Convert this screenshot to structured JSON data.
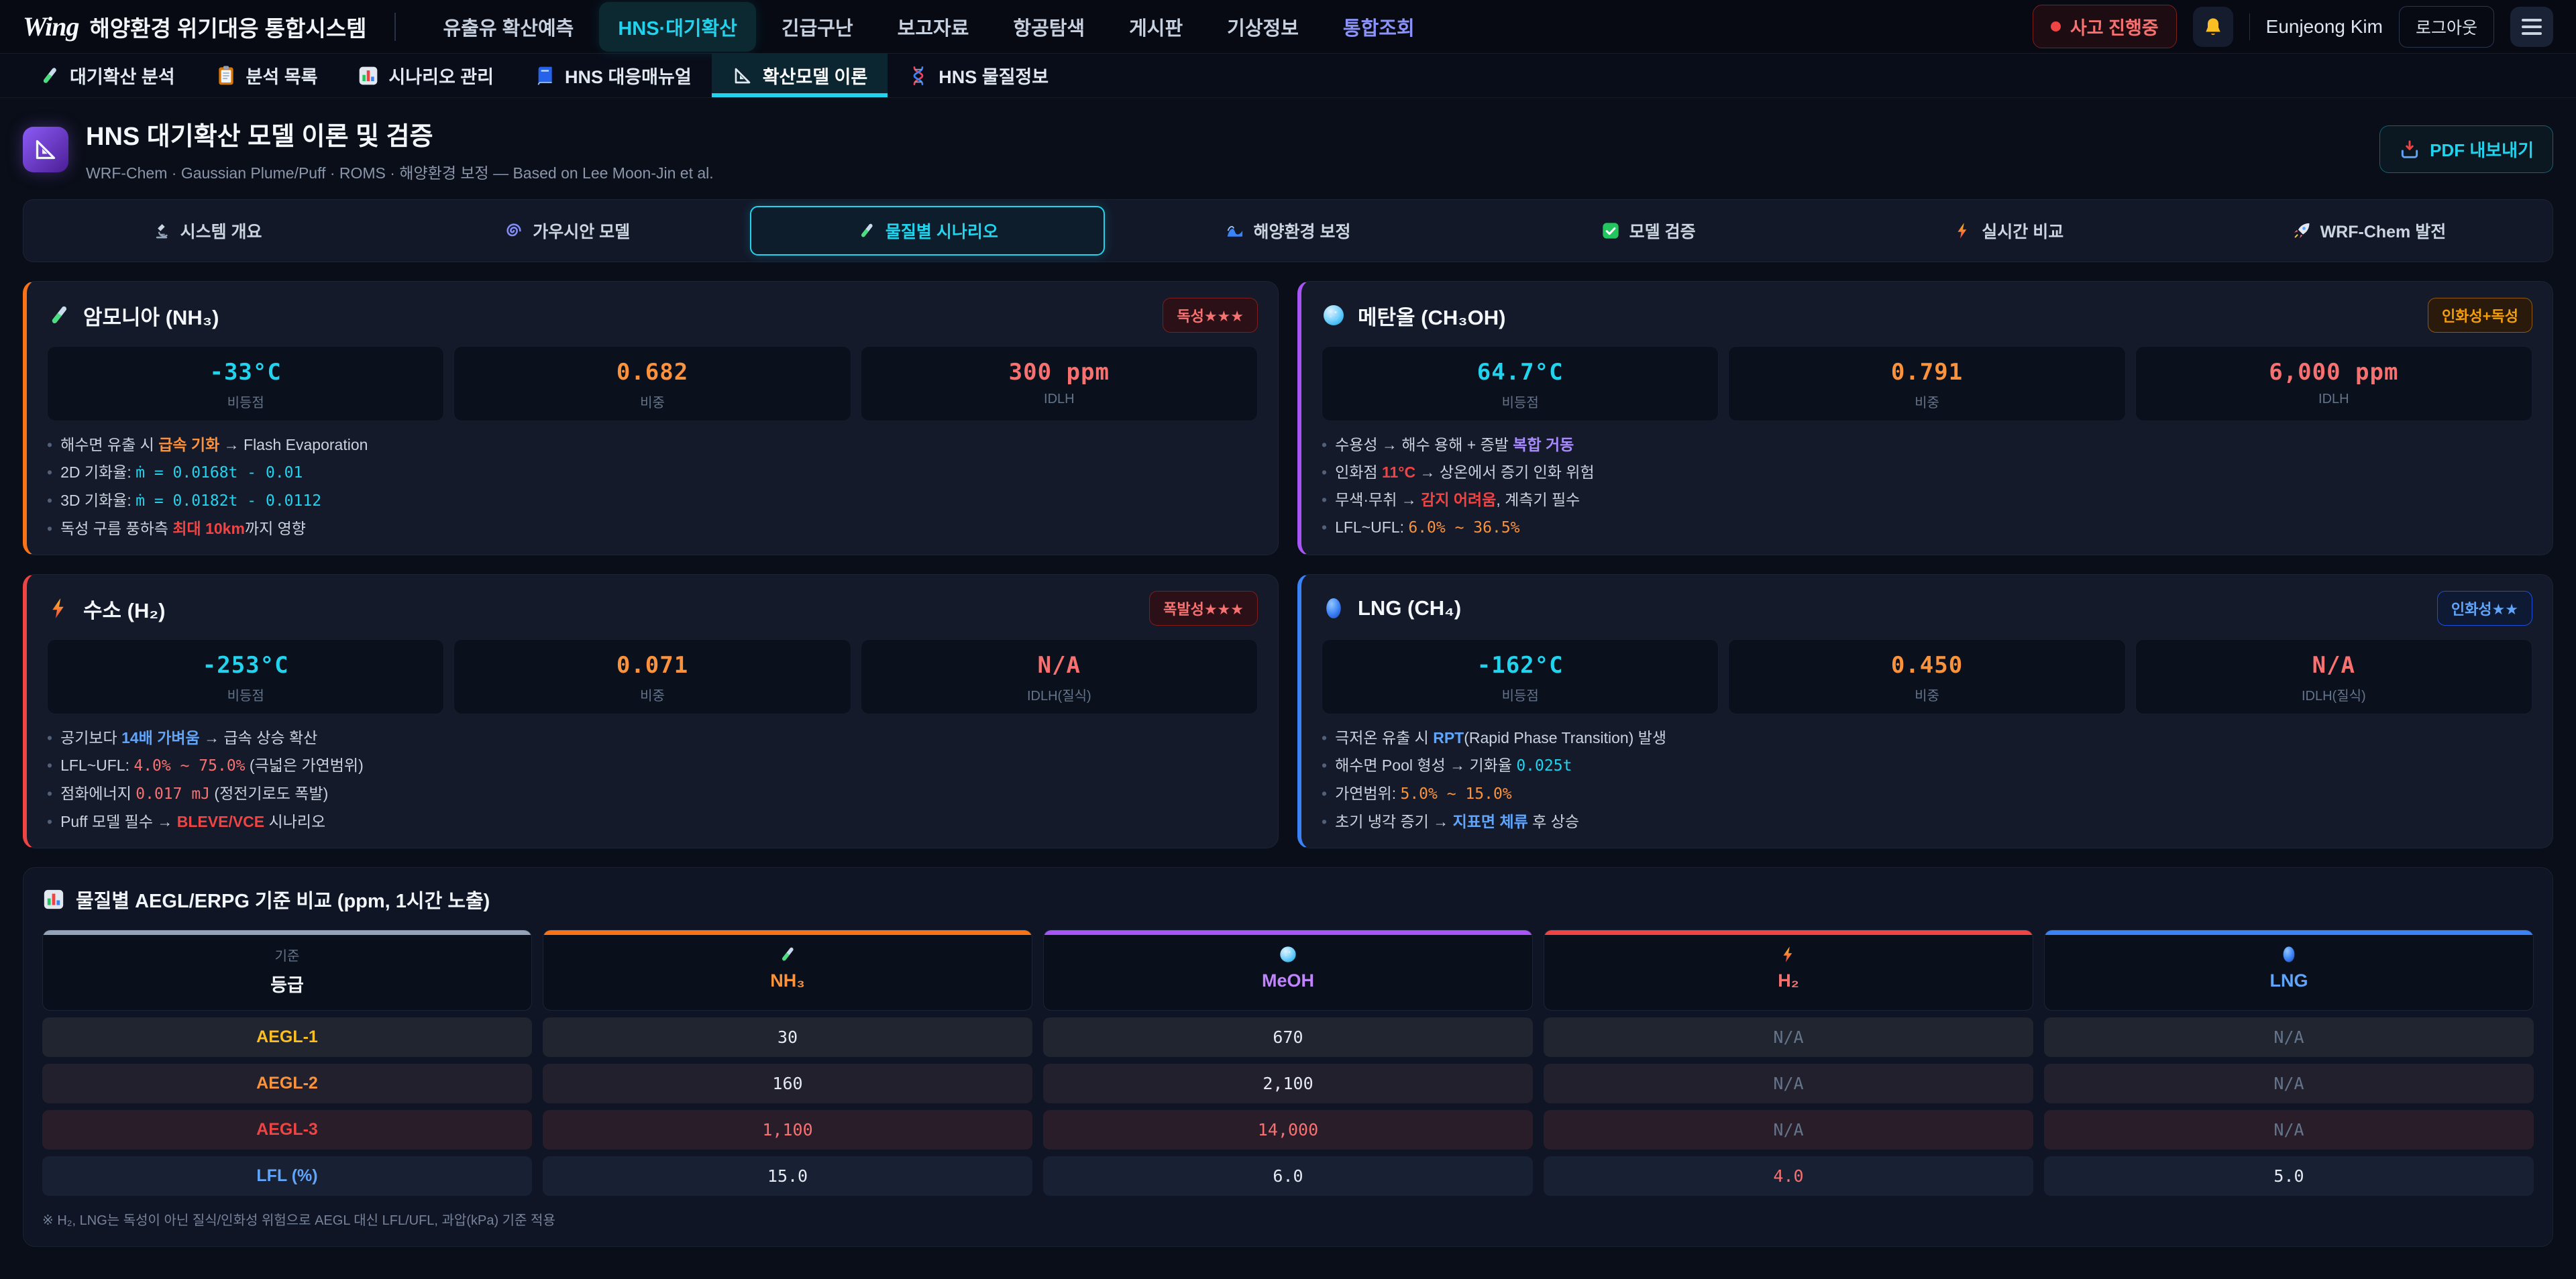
{
  "navbar": {
    "logo": "Wing",
    "title": "해양환경 위기대응 통합시스템",
    "items": [
      {
        "id": "oil-spill",
        "label": "유출유 확산예측"
      },
      {
        "id": "hns-diffusion",
        "label": "HNS·대기확산",
        "active": true
      },
      {
        "id": "rescue",
        "label": "긴급구난"
      },
      {
        "id": "reports",
        "label": "보고자료"
      },
      {
        "id": "aerial-search",
        "label": "항공탐색"
      },
      {
        "id": "board",
        "label": "게시판"
      },
      {
        "id": "weather",
        "label": "기상정보"
      },
      {
        "id": "integrated-search",
        "label": "통합조회",
        "accent": true
      }
    ],
    "status_badge": "사고 진행중",
    "user_name": "Eunjeong Kim",
    "logout_label": "로그아웃"
  },
  "subtabs": [
    {
      "id": "analysis",
      "label": "대기확산 분석",
      "icon": "test-tube"
    },
    {
      "id": "list",
      "label": "분석 목록",
      "icon": "clipboard"
    },
    {
      "id": "scenario-mgmt",
      "label": "시나리오 관리",
      "icon": "bar-chart"
    },
    {
      "id": "manual",
      "label": "HNS 대응매뉴얼",
      "icon": "book"
    },
    {
      "id": "theory",
      "label": "확산모델 이론",
      "icon": "set-square",
      "active": true
    },
    {
      "id": "substances",
      "label": "HNS 물질정보",
      "icon": "dna"
    }
  ],
  "page_header": {
    "title": "HNS 대기확산 모델 이론 및 검증",
    "subtitle": "WRF-Chem · Gaussian Plume/Puff · ROMS · 해양환경 보정 — Based on Lee Moon-Jin et al.",
    "export_label": "PDF 내보내기"
  },
  "section_tabs": [
    {
      "id": "overview",
      "label": "시스템 개요",
      "icon": "microscope"
    },
    {
      "id": "gaussian",
      "label": "가우시안 모델",
      "icon": "cyclone"
    },
    {
      "id": "substance-scenarios",
      "label": "물질별 시나리오",
      "icon": "test-tube",
      "active": true
    },
    {
      "id": "ocean-correction",
      "label": "해양환경 보정",
      "icon": "wave"
    },
    {
      "id": "validation",
      "label": "모델 검증",
      "icon": "check"
    },
    {
      "id": "realtime",
      "label": "실시간 비교",
      "icon": "lightning"
    },
    {
      "id": "wrf-chem",
      "label": "WRF-Chem 발전",
      "icon": "rocket"
    }
  ],
  "cards": [
    {
      "id": "nh3",
      "name": "암모니아 (NH₃)",
      "icon": "test-tube",
      "accent": "#f97316",
      "badge": {
        "text": "독성★★★",
        "fg": "#f87171",
        "bg": "#2b1117",
        "border": "#7f1d1d"
      },
      "stats": [
        {
          "value": "-33°C",
          "label": "비등점",
          "color": "cyan"
        },
        {
          "value": "0.682",
          "label": "비중",
          "color": "orange"
        },
        {
          "value": "300 ppm",
          "label": "IDLH",
          "color": "red"
        }
      ],
      "bullets": [
        [
          {
            "t": "해수면 유출 시 "
          },
          {
            "t": "급속 기화",
            "c": "hl-orange"
          },
          {
            "t": " → Flash Evaporation"
          }
        ],
        [
          {
            "t": "2D 기화율: "
          },
          {
            "t": "ṁ = 0.0168t - 0.01",
            "c": "mono-cyan"
          }
        ],
        [
          {
            "t": "3D 기화율: "
          },
          {
            "t": "ṁ = 0.0182t - 0.0112",
            "c": "mono-cyan"
          }
        ],
        [
          {
            "t": "독성 구름 풍하측 "
          },
          {
            "t": "최대 10km",
            "c": "hl-red"
          },
          {
            "t": "까지 영향"
          }
        ]
      ]
    },
    {
      "id": "meoh",
      "name": "메탄올 (CH₃OH)",
      "icon": "meoh-ball",
      "accent": "#a855f7",
      "badge": {
        "text": "인화성+독성",
        "fg": "#f59e0b",
        "bg": "#2a1a0b",
        "border": "#92580a"
      },
      "stats": [
        {
          "value": "64.7°C",
          "label": "비등점",
          "color": "cyan"
        },
        {
          "value": "0.791",
          "label": "비중",
          "color": "orange"
        },
        {
          "value": "6,000 ppm",
          "label": "IDLH",
          "color": "red"
        }
      ],
      "bullets": [
        [
          {
            "t": "수용성 → 해수 용해 + 증발 "
          },
          {
            "t": "복합 거동",
            "c": "hl-purple"
          }
        ],
        [
          {
            "t": "인화점 "
          },
          {
            "t": "11°C",
            "c": "hl-red"
          },
          {
            "t": " → 상온에서 증기 인화 위험"
          }
        ],
        [
          {
            "t": "무색·무취 → "
          },
          {
            "t": "감지 어려움",
            "c": "hl-red"
          },
          {
            "t": ", 계측기 필수"
          }
        ],
        [
          {
            "t": "LFL~UFL: "
          },
          {
            "t": "6.0% ~ 36.5%",
            "c": "mono-orange"
          }
        ]
      ]
    },
    {
      "id": "h2",
      "name": "수소 (H₂)",
      "icon": "lightning",
      "accent": "#ef4444",
      "badge": {
        "text": "폭발성★★★",
        "fg": "#f87171",
        "bg": "#2b1117",
        "border": "#7f1d1d"
      },
      "stats": [
        {
          "value": "-253°C",
          "label": "비등점",
          "color": "cyan"
        },
        {
          "value": "0.071",
          "label": "비중",
          "color": "orange"
        },
        {
          "value": "N/A",
          "label": "IDLH(질식)",
          "color": "red"
        }
      ],
      "bullets": [
        [
          {
            "t": "공기보다 "
          },
          {
            "t": "14배 가벼움",
            "c": "hl-blue"
          },
          {
            "t": " → 급속 상승 확산"
          }
        ],
        [
          {
            "t": "LFL~UFL: "
          },
          {
            "t": "4.0% ~ 75.0%",
            "c": "mono-red"
          },
          {
            "t": " (극넓은 가연범위)"
          }
        ],
        [
          {
            "t": "점화에너지 "
          },
          {
            "t": "0.017 mJ",
            "c": "mono-red"
          },
          {
            "t": " (정전기로도 폭발)"
          }
        ],
        [
          {
            "t": "Puff 모델 필수 → "
          },
          {
            "t": "BLEVE/VCE",
            "c": "hl-red"
          },
          {
            "t": " 시나리오"
          }
        ]
      ]
    },
    {
      "id": "lng",
      "name": "LNG (CH₄)",
      "icon": "lng-ball",
      "accent": "#3b82f6",
      "badge": {
        "text": "인화성★★",
        "fg": "#60a5fa",
        "bg": "#0e1a33",
        "border": "#1d4ed8"
      },
      "stats": [
        {
          "value": "-162°C",
          "label": "비등점",
          "color": "cyan"
        },
        {
          "value": "0.450",
          "label": "비중",
          "color": "orange"
        },
        {
          "value": "N/A",
          "label": "IDLH(질식)",
          "color": "red"
        }
      ],
      "bullets": [
        [
          {
            "t": "극저온 유출 시 "
          },
          {
            "t": "RPT",
            "c": "hl-blue"
          },
          {
            "t": "(Rapid Phase Transition) 발생"
          }
        ],
        [
          {
            "t": "해수면 Pool 형성 → 기화율 "
          },
          {
            "t": "0.025t",
            "c": "mono-cyan"
          }
        ],
        [
          {
            "t": "가연범위: "
          },
          {
            "t": "5.0% ~ 15.0%",
            "c": "mono-orange"
          }
        ],
        [
          {
            "t": "초기 냉각 증기 → "
          },
          {
            "t": "지표면 체류",
            "c": "hl-blue"
          },
          {
            "t": " 후 상승"
          }
        ]
      ]
    }
  ],
  "table": {
    "title": "물질별 AEGL/ERPG 기준 비교 (ppm, 1시간 노출)",
    "title_icon": "bar-chart",
    "columns": [
      {
        "id": "grade",
        "top_text": "기준",
        "label": "등급",
        "bar": "#94a3b8",
        "fg": "#f1f5f9"
      },
      {
        "id": "nh3",
        "label": "NH₃",
        "bar": "#f97316",
        "fg": "#fb923c",
        "icon": "test-tube"
      },
      {
        "id": "meoh",
        "label": "MeOH",
        "bar": "#a855f7",
        "fg": "#c084fc",
        "icon": "meoh-ball"
      },
      {
        "id": "h2",
        "label": "H₂",
        "bar": "#ef4444",
        "fg": "#f87171",
        "icon": "lightning"
      },
      {
        "id": "lng",
        "label": "LNG",
        "bar": "#3b82f6",
        "fg": "#60a5fa",
        "icon": "lng-ball"
      }
    ],
    "rows": [
      {
        "label": "AEGL-1",
        "label_color": "#fbbf24",
        "tint": "#20252f",
        "values": [
          {
            "t": "30"
          },
          {
            "t": "670"
          },
          {
            "t": "N/A",
            "muted": true
          },
          {
            "t": "N/A",
            "muted": true
          }
        ]
      },
      {
        "label": "AEGL-2",
        "label_color": "#fb923c",
        "tint": "#23202d",
        "values": [
          {
            "t": "160"
          },
          {
            "t": "2,100"
          },
          {
            "t": "N/A",
            "muted": true
          },
          {
            "t": "N/A",
            "muted": true
          }
        ]
      },
      {
        "label": "AEGL-3",
        "label_color": "#ef4444",
        "tint": "#281d28",
        "values": [
          {
            "t": "1,100",
            "color": "#f87171"
          },
          {
            "t": "14,000",
            "color": "#f87171"
          },
          {
            "t": "N/A",
            "muted": true
          },
          {
            "t": "N/A",
            "muted": true
          }
        ]
      },
      {
        "label": "LFL (%)",
        "label_color": "#60a5fa",
        "tint": "#182134",
        "values": [
          {
            "t": "15.0"
          },
          {
            "t": "6.0"
          },
          {
            "t": "4.0",
            "color": "#f87171"
          },
          {
            "t": "5.0"
          }
        ]
      }
    ],
    "footnote": "※ H₂, LNG는 독성이 아닌 질식/인화성 위험으로 AEGL 대신 LFL/UFL, 과압(kPa) 기준 적용"
  }
}
